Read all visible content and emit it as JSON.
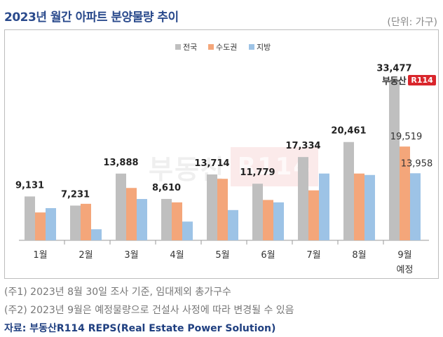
{
  "header": {
    "title": "2023년 월간 아파트 분양물량 추이",
    "unit": "(단위: 가구)"
  },
  "logo": {
    "word": "부동산",
    "badge": "R114"
  },
  "watermark": {
    "word": "부동산",
    "badge": "R114"
  },
  "chart_data": {
    "type": "bar",
    "title": "2023년 월간 아파트 분양물량 추이",
    "categories": [
      "1월",
      "2월",
      "3월",
      "4월",
      "5월",
      "6월",
      "7월",
      "8월",
      "9월"
    ],
    "category_sublabels": [
      "",
      "",
      "",
      "",
      "",
      "",
      "",
      "",
      "예정"
    ],
    "series": [
      {
        "name": "전국",
        "color": "#bfbfbf",
        "values": [
          9131,
          7231,
          13888,
          8610,
          13714,
          11779,
          17334,
          20461,
          33477
        ]
      },
      {
        "name": "수도권",
        "color": "#f4a67a",
        "values": [
          5800,
          7600,
          10900,
          7900,
          12800,
          8400,
          10400,
          13900,
          19519
        ]
      },
      {
        "name": "지방",
        "color": "#9dc3e6",
        "values": [
          6700,
          2300,
          8600,
          3900,
          6300,
          7900,
          13900,
          13600,
          13958
        ]
      }
    ],
    "value_labels": {
      "전국": [
        "9,131",
        "7,231",
        "13,888",
        "8,610",
        "13,714",
        "11,779",
        "17,334",
        "20,461",
        "33,477"
      ],
      "수도권_last": "19,519",
      "지방_last": "13,958"
    },
    "legend_position": "top-center",
    "ylim": [
      0,
      35000
    ],
    "grid": false,
    "xlabel": "",
    "ylabel": ""
  },
  "notes": {
    "note1": "(주1) 2023년 8월 30일 조사 기준, 임대제외 총가구수",
    "note2": "(주2) 2023년 9월은 예정물량으로 건설사 사정에 따라 변경될 수 있음"
  },
  "source": "자료: 부동산R114 REPS(Real Estate Power Solution)"
}
